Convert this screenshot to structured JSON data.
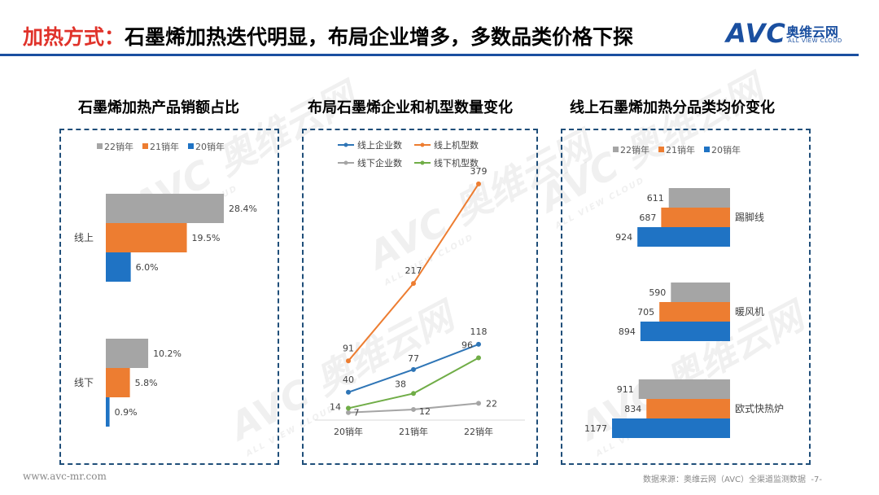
{
  "header": {
    "title_prefix": "加热方式：",
    "title_main": "石墨烯加热迭代明显，布局企业增多，多数品类价格下探",
    "logo_mark": "AVC",
    "logo_cn": "奥维云网",
    "logo_en": "ALL VIEW CLOUD"
  },
  "watermark": {
    "mark": "AVC 奥维云网",
    "sub": "ALL VIEW CLOUD"
  },
  "footer": {
    "url": "www.avc-mr.com",
    "source": "数据来源：奥维云网（AVC）全渠道监测数据",
    "page": "-7-"
  },
  "colors": {
    "grey": "#a5a5a5",
    "orange": "#ed7d31",
    "blue": "#1f73c4",
    "green": "#70ad47",
    "lineblue": "#2e75b6"
  },
  "chart_data": [
    {
      "type": "bar",
      "orientation": "horizontal",
      "title": "石墨烯加热产品销额占比",
      "categories": [
        "线上",
        "线下"
      ],
      "series": [
        {
          "name": "22销年",
          "values": [
            28.4,
            10.2
          ],
          "labels": [
            "28.4%",
            "10.2%"
          ]
        },
        {
          "name": "21销年",
          "values": [
            19.5,
            5.8
          ],
          "labels": [
            "19.5%",
            "5.8%"
          ]
        },
        {
          "name": "20销年",
          "values": [
            6.0,
            0.9
          ],
          "labels": [
            "6.0%",
            "0.9%"
          ]
        }
      ],
      "legend": [
        "22销年",
        "21销年",
        "20销年"
      ],
      "xlim": [
        0,
        30
      ]
    },
    {
      "type": "line",
      "title": "布局石墨烯企业和机型数量变化",
      "x": [
        "20销年",
        "21销年",
        "22销年"
      ],
      "series": [
        {
          "name": "线上企业数",
          "values": [
            40,
            77,
            118
          ]
        },
        {
          "name": "线上机型数",
          "values": [
            91,
            217,
            379
          ]
        },
        {
          "name": "线下企业数",
          "values": [
            7,
            12,
            22
          ]
        },
        {
          "name": "线下机型数",
          "values": [
            14,
            38,
            96
          ]
        }
      ],
      "ylim": [
        0,
        400
      ]
    },
    {
      "type": "bar",
      "orientation": "horizontal",
      "title": "线上石墨烯加热分品类均价变化",
      "categories": [
        "踢脚线",
        "暖风机",
        "欧式快热炉"
      ],
      "series": [
        {
          "name": "22销年",
          "values": [
            611,
            590,
            911
          ]
        },
        {
          "name": "21销年",
          "values": [
            687,
            705,
            834
          ]
        },
        {
          "name": "20销年",
          "values": [
            924,
            894,
            1177
          ]
        }
      ],
      "legend": [
        "22销年",
        "21销年",
        "20销年"
      ],
      "xlim": [
        0,
        1200
      ]
    }
  ]
}
